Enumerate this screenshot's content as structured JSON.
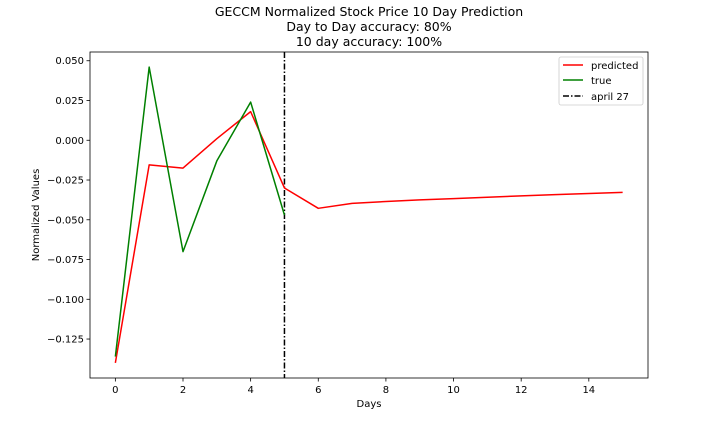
{
  "chart_data": {
    "type": "line",
    "title_lines": [
      "GECCM Normalized Stock Price 10 Day Prediction",
      "Day to Day accuracy: 80%",
      "10 day accuracy: 100%"
    ],
    "xlabel": "Days",
    "ylabel": "Normalized Values",
    "xlim": [
      -0.75,
      15.75
    ],
    "ylim": [
      -0.1495,
      0.0555
    ],
    "xticks": [
      0,
      2,
      4,
      6,
      8,
      10,
      12,
      14
    ],
    "yticks": [
      0.05,
      0.025,
      0.0,
      -0.025,
      -0.05,
      -0.075,
      -0.1,
      -0.125
    ],
    "ytick_labels": [
      "0.050",
      "0.025",
      "0.000",
      "−0.025",
      "−0.050",
      "−0.075",
      "−0.100",
      "−0.125"
    ],
    "grid": false,
    "legend_position": "top-right",
    "series": [
      {
        "name": "predicted",
        "color": "#ff0000",
        "x": [
          0,
          1,
          2,
          3,
          4,
          5,
          6,
          7,
          8,
          9,
          10,
          11,
          12,
          13,
          14,
          15
        ],
        "y": [
          -0.14,
          -0.0155,
          -0.0175,
          0.001,
          0.018,
          -0.03,
          -0.0428,
          -0.0397,
          -0.0385,
          -0.0375,
          -0.0367,
          -0.0358,
          -0.035,
          -0.0342,
          -0.0335,
          -0.0328
        ]
      },
      {
        "name": "true",
        "color": "#008000",
        "x": [
          0,
          1,
          2,
          3,
          4,
          5
        ],
        "y": [
          -0.136,
          0.046,
          -0.07,
          -0.013,
          0.024,
          -0.047
        ]
      }
    ],
    "vline": {
      "name": "april 27",
      "x": 5,
      "color": "#000000",
      "style": "dashdot"
    }
  }
}
